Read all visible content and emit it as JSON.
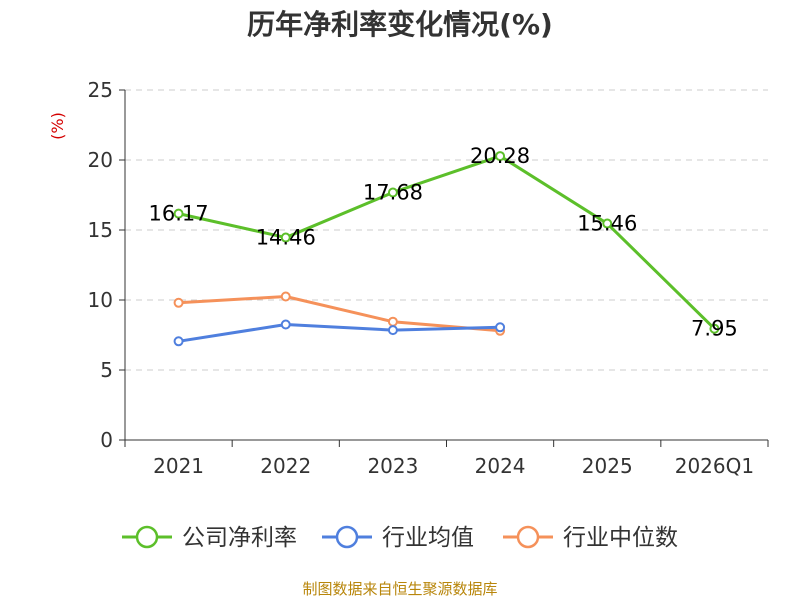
{
  "chart_data": {
    "type": "line",
    "title": "历年净利率变化情况(%)",
    "ylabel": "(%)",
    "xlabel": "",
    "categories": [
      "2021",
      "2022",
      "2023",
      "2024",
      "2025",
      "2026Q1"
    ],
    "ylim": [
      0,
      25
    ],
    "yticks": [
      0,
      5,
      10,
      15,
      20,
      25
    ],
    "grid": true,
    "legend_position": "bottom",
    "series": [
      {
        "name": "公司净利率",
        "color": "#5cbf2a",
        "values": [
          16.17,
          14.46,
          17.68,
          20.28,
          15.46,
          7.95
        ],
        "labels": [
          "16.17",
          "14.46",
          "17.68",
          "20.28",
          "15.46",
          "7.95"
        ]
      },
      {
        "name": "行业均值",
        "color": "#4f7fde",
        "values": [
          7.05,
          8.25,
          7.85,
          8.05,
          null,
          null
        ]
      },
      {
        "name": "行业中位数",
        "color": "#f5915a",
        "values": [
          9.8,
          10.25,
          8.45,
          7.8,
          null,
          null
        ]
      }
    ]
  },
  "source_text": "制图数据来自恒生聚源数据库"
}
